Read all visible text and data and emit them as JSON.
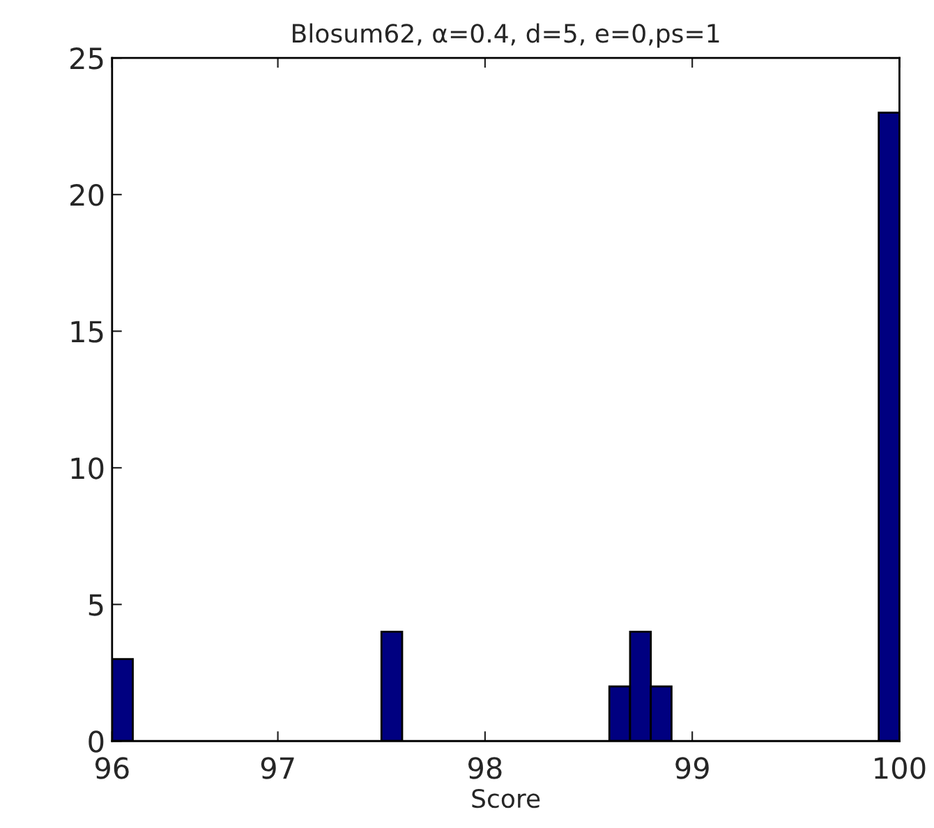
{
  "chart_data": {
    "type": "histogram",
    "title": "Blosum62, α=0.4, d=5, e=0,ps=1",
    "xlabel": "Score",
    "bins": [
      96.2,
      96.3,
      96.4,
      96.5,
      96.6,
      96.7,
      96.8,
      96.9,
      97.0,
      97.1,
      97.2,
      97.3,
      97.4,
      97.5,
      97.6,
      97.7,
      97.8,
      97.9,
      98.0,
      98.1,
      98.2,
      98.3,
      98.4,
      98.5,
      98.6,
      98.7,
      98.8,
      98.9,
      99.0,
      99.1,
      99.2,
      99.3,
      99.4,
      99.5,
      99.6,
      99.7,
      99.8,
      99.9,
      100.0
    ],
    "values": [
      3,
      0,
      0,
      0,
      0,
      0,
      0,
      0,
      0,
      0,
      0,
      0,
      0,
      4,
      0,
      0,
      0,
      0,
      0,
      0,
      0,
      0,
      0,
      0,
      2,
      4,
      2,
      0,
      0,
      0,
      0,
      0,
      0,
      0,
      0,
      0,
      0,
      23
    ],
    "color": "#000080",
    "xlim": [
      96.2,
      100
    ],
    "xticks": [
      {
        "value": 96.2,
        "label": "96"
      },
      97,
      98,
      99,
      100
    ],
    "ylim": [
      0,
      25
    ],
    "yticks": [
      0,
      5,
      10,
      15,
      20,
      25
    ],
    "grid": false
  }
}
